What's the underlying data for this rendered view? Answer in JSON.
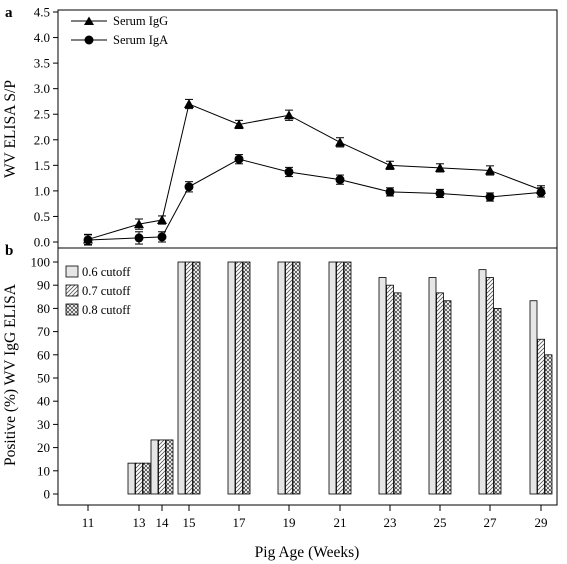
{
  "chart_data": [
    {
      "panel_label": "a",
      "type": "line",
      "ylabel": "WV ELISA S/P",
      "ylim": [
        0,
        4.5
      ],
      "yticks": [
        "0.0",
        "0.5",
        "1.0",
        "1.5",
        "2.0",
        "2.5",
        "3.0",
        "3.5",
        "4.0",
        "4.5"
      ],
      "x": [
        11,
        13,
        14,
        15,
        17,
        19,
        21,
        23,
        25,
        27,
        29
      ],
      "error_bars": true,
      "legend_position": "top-left",
      "series": [
        {
          "name": "Serum IgG",
          "marker": "triangle",
          "values": [
            0.05,
            0.35,
            0.43,
            2.7,
            2.3,
            2.48,
            1.95,
            1.5,
            1.45,
            1.4,
            1.02
          ],
          "errors": [
            0.1,
            0.1,
            0.08,
            0.09,
            0.08,
            0.1,
            0.09,
            0.08,
            0.08,
            0.09,
            0.08
          ]
        },
        {
          "name": "Serum IgA",
          "marker": "circle",
          "values": [
            0.04,
            0.08,
            0.1,
            1.08,
            1.62,
            1.37,
            1.22,
            0.98,
            0.95,
            0.88,
            0.97
          ],
          "errors": [
            0.1,
            0.12,
            0.1,
            0.1,
            0.09,
            0.09,
            0.09,
            0.08,
            0.08,
            0.08,
            0.09
          ]
        }
      ]
    },
    {
      "panel_label": "b",
      "type": "bar",
      "ylabel": "Positive (%) WV IgG ELISA",
      "xlabel": "Pig Age (Weeks)",
      "ylim": [
        0,
        100
      ],
      "yticks": [
        "0",
        "10",
        "20",
        "30",
        "40",
        "50",
        "60",
        "70",
        "80",
        "90",
        "100"
      ],
      "categories": [
        "11",
        "13",
        "14",
        "15",
        "17",
        "19",
        "21",
        "23",
        "25",
        "27",
        "29"
      ],
      "legend_position": "top-left",
      "series": [
        {
          "name": "0.6 cutoff",
          "pattern": "light-gray",
          "values": [
            0,
            13.3,
            23.3,
            100,
            100,
            100,
            100,
            93.3,
            93.3,
            96.7,
            83.3
          ]
        },
        {
          "name": "0.7 cutoff",
          "pattern": "diagonal-hatch",
          "values": [
            0,
            13.3,
            23.3,
            100,
            100,
            100,
            100,
            90,
            86.7,
            93.3,
            66.7
          ]
        },
        {
          "name": "0.8 cutoff",
          "pattern": "crosshatch",
          "values": [
            0,
            13.3,
            23.3,
            100,
            100,
            100,
            100,
            86.7,
            83.3,
            80,
            60
          ]
        }
      ]
    }
  ]
}
